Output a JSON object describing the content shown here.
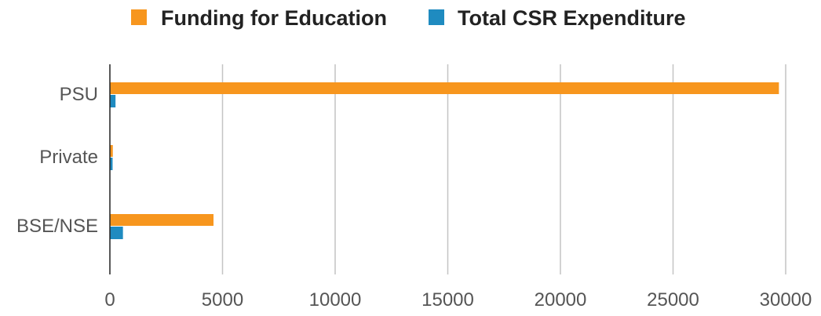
{
  "chart_data": {
    "type": "bar",
    "orientation": "horizontal",
    "categories": [
      "PSU",
      "Private",
      "BSE/NSE"
    ],
    "series": [
      {
        "name": "Funding for Education",
        "color": "#F7961E",
        "values": [
          29700,
          130,
          4600
        ]
      },
      {
        "name": "Total CSR Expenditure",
        "color": "#1F8BC0",
        "values": [
          250,
          120,
          580
        ]
      }
    ],
    "xlim": [
      0,
      30000
    ],
    "xticks": [
      0,
      5000,
      10000,
      15000,
      20000,
      25000,
      30000
    ],
    "xtick_labels": [
      "0",
      "5000",
      "10000",
      "15000",
      "20000",
      "25000",
      "30000"
    ],
    "grid": "vertical",
    "legend_position": "top-center"
  }
}
